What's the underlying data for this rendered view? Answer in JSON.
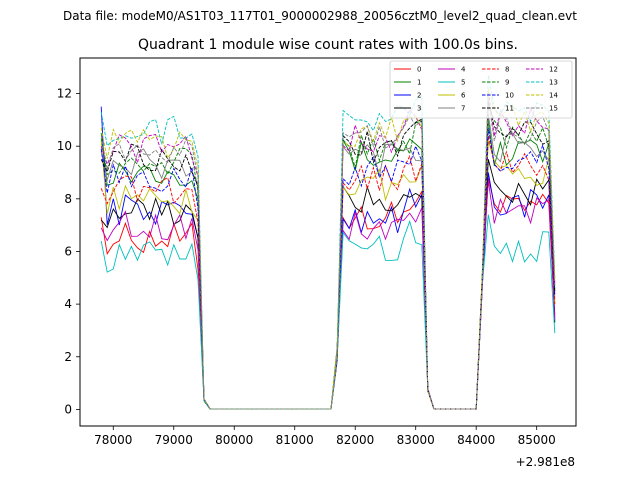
{
  "header": {
    "data_file": "Data file: modeM0/AS1T03_117T01_9000002988_20056cztM0_level2_quad_clean.evt"
  },
  "chart_data": {
    "type": "line",
    "title": "Quadrant 1 module wise count rates with 100.0s bins.",
    "xlabel": "",
    "ylabel": "",
    "xlim": [
      77450,
      85650
    ],
    "ylim": [
      -0.63,
      13.35
    ],
    "x_offset_label": "+2.981e8",
    "x_ticks": [
      78000,
      79000,
      80000,
      81000,
      82000,
      83000,
      84000,
      85000
    ],
    "x_tick_labels": [
      "78000",
      "79000",
      "80000",
      "81000",
      "82000",
      "83000",
      "84000",
      "85000"
    ],
    "y_ticks": [
      0,
      2,
      4,
      6,
      8,
      10,
      12
    ],
    "y_tick_labels": [
      "0",
      "2",
      "4",
      "6",
      "8",
      "10",
      "12"
    ],
    "legend_position": "top-right",
    "segments": [
      {
        "start": 77800,
        "steps": 17
      },
      {
        "start": 79500,
        "steps": 1,
        "values": [
          0.3
        ]
      },
      {
        "start": 79600,
        "steps": 21,
        "values": "zero"
      },
      {
        "start": 81700,
        "steps": 1,
        "values": "ramp"
      },
      {
        "start": 81800,
        "steps": 14
      },
      {
        "start": 83200,
        "steps": 1,
        "values": [
          0.7
        ]
      },
      {
        "start": 83300,
        "steps": 8,
        "values": "zero"
      },
      {
        "start": 84100,
        "steps": 1,
        "values": "ramp"
      },
      {
        "start": 84200,
        "steps": 11
      },
      {
        "start": 85300,
        "steps": 1,
        "values": "end"
      }
    ],
    "series": [
      {
        "name": "0",
        "color": "#ff0000",
        "dash": "solid",
        "level1": 6.5,
        "level2": 7.3,
        "level3": 7.6,
        "start": 7.3,
        "end": 3.6
      },
      {
        "name": "1",
        "color": "#008000",
        "dash": "solid",
        "level1": 9.1,
        "level2": 9.6,
        "level3": 9.8,
        "start": 10.5,
        "end": 4.5
      },
      {
        "name": "2",
        "color": "#0000ff",
        "dash": "solid",
        "level1": 7.6,
        "level2": 7.3,
        "level3": 7.8,
        "start": 11.5,
        "end": 3.5
      },
      {
        "name": "3",
        "color": "#000000",
        "dash": "solid",
        "level1": 7.5,
        "level2": 7.9,
        "level3": 8.3,
        "start": 7.2,
        "end": 3.3
      },
      {
        "name": "4",
        "color": "#bf00bf",
        "dash": "solid",
        "level1": 7.0,
        "level2": 6.9,
        "level3": 7.5,
        "start": 6.9,
        "end": 3.4
      },
      {
        "name": "5",
        "color": "#00bfbf",
        "dash": "solid",
        "level1": 5.8,
        "level2": 6.2,
        "level3": 6.2,
        "start": 6.4,
        "end": 2.9
      },
      {
        "name": "6",
        "color": "#bfbf00",
        "dash": "solid",
        "level1": 8.0,
        "level2": 8.6,
        "level3": 9.0,
        "start": 10.2,
        "end": 4.0
      },
      {
        "name": "7",
        "color": "#808080",
        "dash": "solid",
        "level1": 9.3,
        "level2": 9.5,
        "level3": 10.0,
        "start": 9.8,
        "end": 4.2
      },
      {
        "name": "8",
        "color": "#ff0000",
        "dash": "dashed",
        "level1": 8.4,
        "level2": 8.8,
        "level3": 9.2,
        "start": 8.4,
        "end": 4.0
      },
      {
        "name": "9",
        "color": "#008000",
        "dash": "dashed",
        "level1": 9.5,
        "level2": 9.8,
        "level3": 10.4,
        "start": 10.3,
        "end": 4.6
      },
      {
        "name": "10",
        "color": "#0000ff",
        "dash": "dashed",
        "level1": 8.8,
        "level2": 9.0,
        "level3": 9.5,
        "start": 9.9,
        "end": 4.3
      },
      {
        "name": "11",
        "color": "#000000",
        "dash": "dashed",
        "level1": 9.6,
        "level2": 10.0,
        "level3": 10.5,
        "start": 9.5,
        "end": 4.4
      },
      {
        "name": "12",
        "color": "#bf00bf",
        "dash": "dashed",
        "level1": 9.9,
        "level2": 10.3,
        "level3": 10.9,
        "start": 10.0,
        "end": 4.8
      },
      {
        "name": "13",
        "color": "#00bfbf",
        "dash": "dashed",
        "level1": 10.6,
        "level2": 11.0,
        "level3": 11.5,
        "start": 11.3,
        "end": 5.0
      },
      {
        "name": "14",
        "color": "#bfbf00",
        "dash": "dashed",
        "level1": 10.1,
        "level2": 10.5,
        "level3": 11.0,
        "start": 10.7,
        "end": 4.9
      },
      {
        "name": "15",
        "color": "#808080",
        "dash": "dashed",
        "level1": 9.7,
        "level2": 10.2,
        "level3": 10.6,
        "start": 10.4,
        "end": 4.7
      }
    ]
  }
}
